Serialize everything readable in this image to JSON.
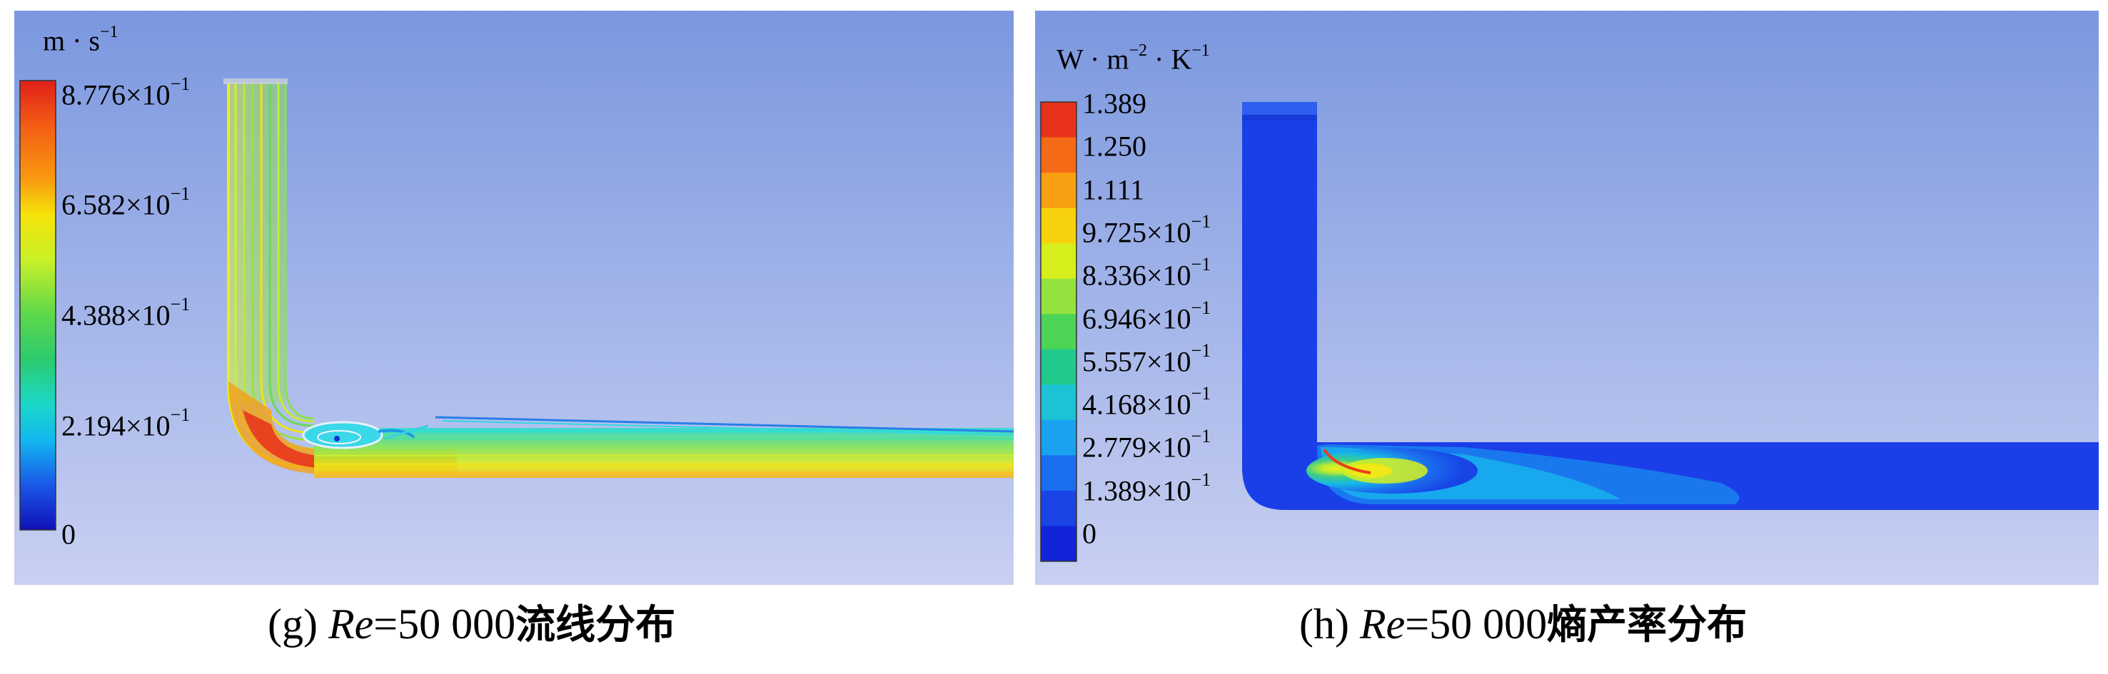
{
  "panels": [
    {
      "id": "g",
      "unit": {
        "base": "m · s",
        "exp": "−1"
      },
      "ticks": [
        {
          "mantissa": "8.776×10",
          "exp": "−1"
        },
        {
          "mantissa": "6.582×10",
          "exp": "−1"
        },
        {
          "mantissa": "4.388×10",
          "exp": "−1"
        },
        {
          "mantissa": "2.194×10",
          "exp": "−1"
        },
        {
          "mantissa": "0",
          "exp": ""
        }
      ],
      "caption": {
        "label": "(g) ",
        "re": "Re",
        "value": "=50 000",
        "cn": "流线分布"
      },
      "colorbar": [
        "#e0201a",
        "#f35c14",
        "#f99b10",
        "#f5d40a",
        "#d9f21a",
        "#9ee436",
        "#55d84a",
        "#2ccb6e",
        "#1bd1b8",
        "#12b8f0",
        "#1677f0",
        "#1a38e0",
        "#1010c0"
      ]
    },
    {
      "id": "h",
      "unit": {
        "base": "W · m",
        "exp1": "−2",
        "mid": " · K",
        "exp2": "−1"
      },
      "ticks": [
        {
          "mantissa": "1.389",
          "exp": ""
        },
        {
          "mantissa": "1.250",
          "exp": ""
        },
        {
          "mantissa": "1.111",
          "exp": ""
        },
        {
          "mantissa": "9.725×10",
          "exp": "−1"
        },
        {
          "mantissa": "8.336×10",
          "exp": "−1"
        },
        {
          "mantissa": "6.946×10",
          "exp": "−1"
        },
        {
          "mantissa": "5.557×10",
          "exp": "−1"
        },
        {
          "mantissa": "4.168×10",
          "exp": "−1"
        },
        {
          "mantissa": "2.779×10",
          "exp": "−1"
        },
        {
          "mantissa": "1.389×10",
          "exp": "−1"
        },
        {
          "mantissa": "0",
          "exp": ""
        }
      ],
      "caption": {
        "label": "(h) ",
        "re": "Re",
        "value": "=50 000",
        "cn": "熵产率分布"
      },
      "colorbar": [
        "#e8321a",
        "#f56a16",
        "#f9a012",
        "#f7d20c",
        "#d6ee1c",
        "#94e23e",
        "#4cd457",
        "#22c98c",
        "#1cc2d6",
        "#18a2f0",
        "#1a6ef0",
        "#1b44e6",
        "#1124d8"
      ]
    }
  ],
  "colors": {
    "background_top": "#7d98e0",
    "background_bottom": "#c7cff2"
  }
}
